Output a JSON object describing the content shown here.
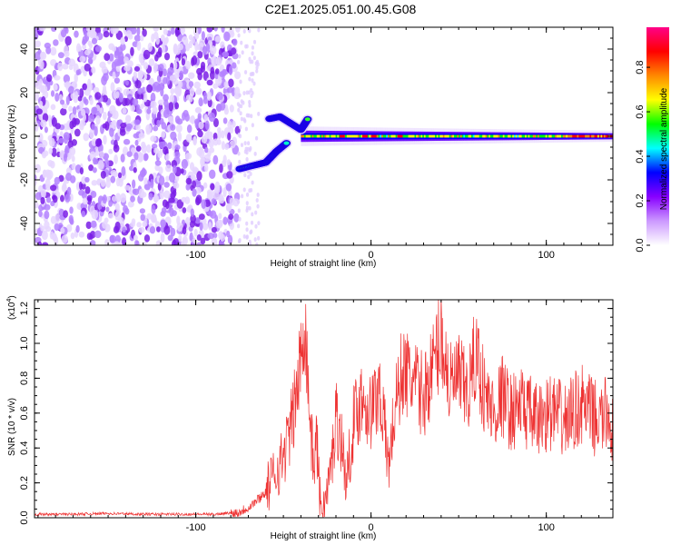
{
  "page": {
    "title": "C2E1.2025.051.00.45.G08"
  },
  "chart_data": [
    {
      "type": "heatmap",
      "xlabel": "Height of straight line (km)",
      "ylabel": "Frequency (Hz)",
      "xlim": [
        -192,
        138
      ],
      "ylim": [
        -50,
        50
      ],
      "x_ticks": [
        -100,
        0,
        100
      ],
      "x_tick_labels": [
        "-100",
        "0",
        "100"
      ],
      "y_ticks": [
        -40,
        -20,
        0,
        20,
        40
      ],
      "y_tick_labels": [
        "-40",
        "-20",
        "0",
        "20",
        "40"
      ],
      "colorbar": {
        "label": "Normalized spectral amplitude",
        "range": [
          0,
          0.98
        ],
        "ticks": [
          0.0,
          0.2,
          0.4,
          0.6,
          0.8
        ],
        "tick_labels": [
          "0.0",
          "0.2",
          "0.4",
          "0.6",
          "0.8"
        ],
        "colors": [
          "#ffffff",
          "#cc99ff",
          "#8800ff",
          "#0000ff",
          "#00ffff",
          "#00ff00",
          "#ffff00",
          "#ff8800",
          "#ff0000",
          "#ff0088"
        ]
      },
      "features": {
        "noise_region_x": [
          -192,
          -76
        ],
        "signal_band_center_hz": 0,
        "signal_band_from_km": -40,
        "signal_band_to_km": 138,
        "branch_low": [
          [
            -75,
            -15
          ],
          [
            -65,
            -13
          ],
          [
            -60,
            -12
          ],
          [
            -54,
            -7
          ],
          [
            -48,
            -3
          ]
        ],
        "branch_high": [
          [
            -58,
            8
          ],
          [
            -52,
            9
          ],
          [
            -46,
            6
          ],
          [
            -40,
            3
          ],
          [
            -36,
            8
          ]
        ]
      }
    },
    {
      "type": "line",
      "xlabel": "Height of straight line (km)",
      "ylabel": "SNR (10 * v/v)",
      "y_multiplier_label": "(x10",
      "y_multiplier_exp": "4",
      "xlim": [
        -192,
        138
      ],
      "ylim": [
        0,
        1.25
      ],
      "x_ticks": [
        -100,
        0,
        100
      ],
      "x_tick_labels": [
        "-100",
        "0",
        "100"
      ],
      "y_ticks": [
        0.0,
        0.2,
        0.4,
        0.6,
        0.8,
        1.0,
        1.2
      ],
      "y_tick_labels": [
        "0.0",
        "0.2",
        "0.4",
        "0.6",
        "0.8",
        "1.0",
        "1.2"
      ],
      "color": "#ee3333",
      "series": [
        {
          "x": [
            -192,
            -170,
            -150,
            -130,
            -110,
            -90,
            -76,
            -70,
            -65,
            -60,
            -55,
            -50,
            -45,
            -42,
            -40,
            -38,
            -35,
            -33,
            -31,
            -29,
            -27,
            -25,
            -22,
            -20,
            -17,
            -14,
            -10,
            -5,
            0,
            5,
            10,
            14,
            18,
            22,
            26,
            30,
            35,
            40,
            45,
            50,
            55,
            60,
            65,
            70,
            75,
            80,
            85,
            90,
            95,
            100,
            105,
            110,
            115,
            120,
            125,
            130,
            135,
            138
          ],
          "y": [
            0.02,
            0.02,
            0.025,
            0.02,
            0.02,
            0.02,
            0.03,
            0.06,
            0.1,
            0.15,
            0.25,
            0.35,
            0.55,
            0.75,
            0.9,
            1.2,
            0.6,
            0.3,
            0.45,
            0.1,
            0.05,
            0.15,
            0.35,
            0.6,
            0.45,
            0.2,
            0.55,
            0.7,
            0.6,
            0.75,
            0.3,
            0.65,
            0.85,
            0.8,
            0.75,
            0.7,
            0.85,
            1.05,
            0.75,
            0.8,
            0.7,
            0.95,
            0.7,
            0.6,
            0.7,
            0.6,
            0.65,
            0.6,
            0.55,
            0.6,
            0.6,
            0.55,
            0.6,
            0.65,
            0.6,
            0.55,
            0.6,
            0.5
          ]
        }
      ]
    }
  ]
}
